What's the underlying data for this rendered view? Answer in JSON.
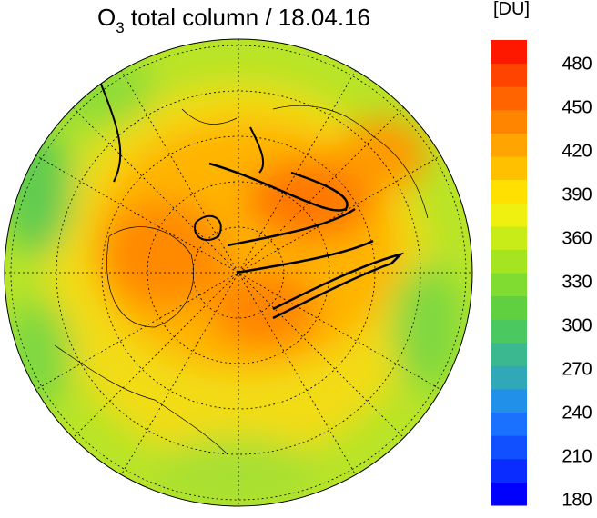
{
  "map": {
    "title": {
      "base": "O",
      "subscript": "3",
      "rest": " total column / 18.04.16"
    },
    "colorbar": {
      "unit": "[DU]",
      "clim": [
        176,
        496
      ],
      "ticks": [
        180,
        210,
        240,
        270,
        300,
        330,
        360,
        390,
        420,
        450,
        480
      ],
      "colors": [
        "#0000ff",
        "#0a2cff",
        "#1050ff",
        "#1a70ff",
        "#2090e8",
        "#30a8b8",
        "#3cb890",
        "#4cc860",
        "#60d040",
        "#80dc30",
        "#a4e420",
        "#c8ec18",
        "#f0f010",
        "#ffe000",
        "#ffc000",
        "#ffa400",
        "#ff8400",
        "#ff6400",
        "#ff4400",
        "#ff1800"
      ]
    }
  }
}
